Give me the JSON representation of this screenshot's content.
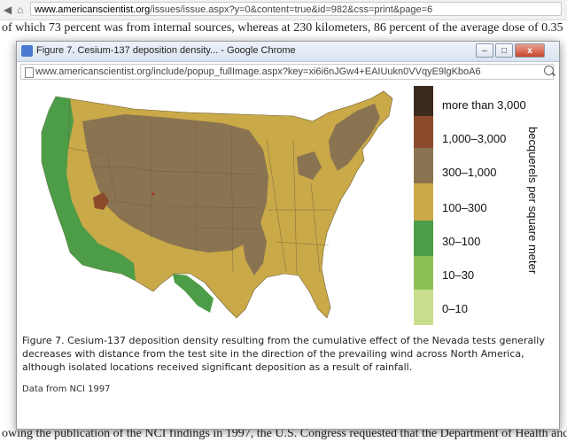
{
  "background": {
    "url": "www.americanscientist.org/issues/issue.aspx?y=0&content=true&id=982&css=print&page=6",
    "url_domain": "www.americanscientist.org",
    "url_path": "/issues/issue.aspx?y=0&content=true&id=982&css=print&page=6",
    "top_line": "of which 73 percent was from internal sources, whereas at 230 kilometers, 86 percent of the average dose of 0.35",
    "bottom_line": "owing the publication of the NCI findings in 1997, the U.S. Congress requested that the Department of Health and"
  },
  "popup": {
    "title": "Figure 7. Cesium-137 deposition density... - Google Chrome",
    "minimize": "–",
    "maximize": "□",
    "close": "x",
    "url": "www.americanscientist.org/include/popup_fullImage.aspx?key=xi6i6nJGw4+EAIUukn0VVqyE9lgKboA6",
    "legend_title": "becquerels per square meter",
    "legend": [
      {
        "label": "more than 3,000",
        "color": "#3b2a20"
      },
      {
        "label": "1,000–3,000",
        "color": "#8b4a2b"
      },
      {
        "label": "300–1,000",
        "color": "#8a7350"
      },
      {
        "label": "100–300",
        "color": "#c9a948"
      },
      {
        "label": "30–100",
        "color": "#4c9c48"
      },
      {
        "label": "10–30",
        "color": "#8cc056"
      },
      {
        "label": "0–10",
        "color": "#c9de8c"
      }
    ],
    "caption": "Figure 7. Cesium-137 deposition density resulting from the cumulative effect of the Nevada tests generally decreases with distance from the test site in the direction of the prevailing wind across North America, although isolated locations received significant deposition as a result of rainfall.",
    "source": "Data from NCI 1997"
  }
}
